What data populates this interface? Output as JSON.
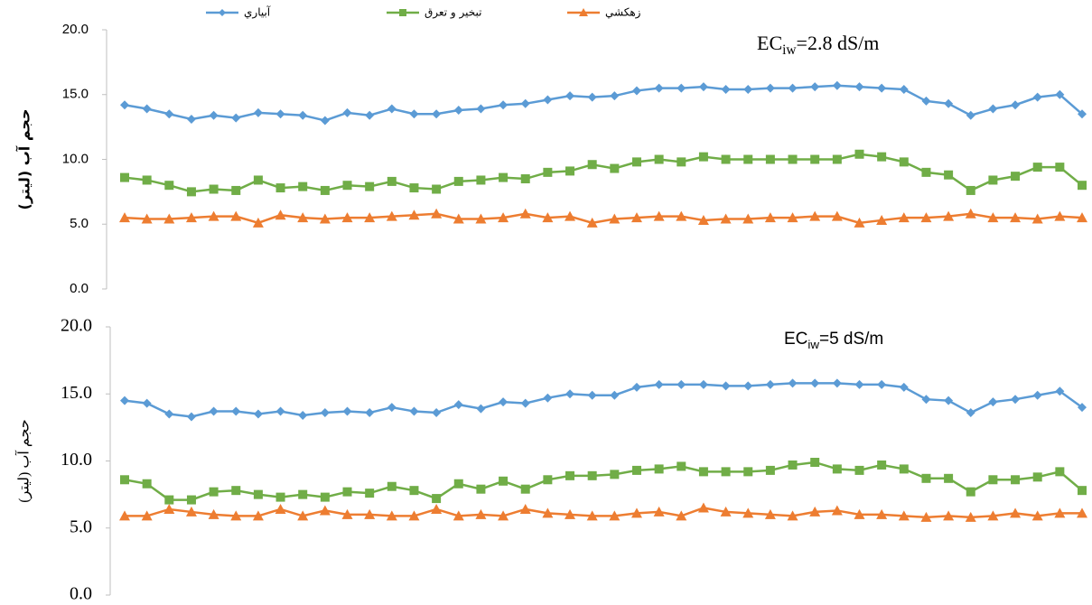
{
  "chart_data": [
    {
      "type": "line",
      "y_label": "حجم آب (ليتر)",
      "annotation": {
        "text": "EC",
        "sub": "iw",
        "rest": "=2.8 dS/m"
      },
      "categories": [
        null,
        null,
        null,
        null,
        null,
        null,
        null,
        null,
        null,
        null,
        null,
        null,
        null,
        null,
        null,
        null,
        null,
        null,
        null,
        null,
        null,
        null,
        null,
        null,
        null,
        null,
        null,
        null,
        null,
        null,
        null,
        null,
        null,
        null,
        null,
        null,
        null,
        null,
        null,
        null,
        null,
        null,
        null,
        null
      ],
      "ylim": [
        0,
        20
      ],
      "yticks": [
        {
          "value": 0,
          "label": "0.0"
        },
        {
          "value": 5,
          "label": "5.0"
        },
        {
          "value": 10,
          "label": "10.0"
        },
        {
          "value": 15,
          "label": "15.0"
        },
        {
          "value": 20,
          "label": "20.0"
        }
      ],
      "grid": false,
      "legend": "top",
      "series": [
        {
          "name": "آبياري",
          "color": "#5b9bd5",
          "marker": "diamond",
          "values": [
            14.2,
            13.9,
            13.5,
            13.1,
            13.4,
            13.2,
            13.6,
            13.5,
            13.4,
            13.0,
            13.6,
            13.4,
            13.9,
            13.5,
            13.5,
            13.8,
            13.9,
            14.2,
            14.3,
            14.6,
            14.9,
            14.8,
            14.9,
            15.3,
            15.5,
            15.5,
            15.6,
            15.4,
            15.4,
            15.5,
            15.5,
            15.6,
            15.7,
            15.6,
            15.5,
            15.4,
            14.5,
            14.3,
            13.4,
            13.9,
            14.2,
            14.8,
            15.0,
            13.5
          ]
        },
        {
          "name": "تبخير و تعرق",
          "color": "#70ad47",
          "marker": "square",
          "values": [
            8.6,
            8.4,
            8.0,
            7.5,
            7.7,
            7.6,
            8.4,
            7.8,
            7.9,
            7.6,
            8.0,
            7.9,
            8.3,
            7.8,
            7.7,
            8.3,
            8.4,
            8.6,
            8.5,
            9.0,
            9.1,
            9.6,
            9.3,
            9.8,
            10.0,
            9.8,
            10.2,
            10.0,
            10.0,
            10.0,
            10.0,
            10.0,
            10.0,
            10.4,
            10.2,
            9.8,
            9.0,
            8.8,
            7.6,
            8.4,
            8.7,
            9.4,
            9.4,
            8.0
          ]
        },
        {
          "name": "زهكشي",
          "color": "#ed7d31",
          "marker": "triangle",
          "values": [
            5.5,
            5.4,
            5.4,
            5.5,
            5.6,
            5.6,
            5.1,
            5.7,
            5.5,
            5.4,
            5.5,
            5.5,
            5.6,
            5.7,
            5.8,
            5.4,
            5.4,
            5.5,
            5.8,
            5.5,
            5.6,
            5.1,
            5.4,
            5.5,
            5.6,
            5.6,
            5.3,
            5.4,
            5.4,
            5.5,
            5.5,
            5.6,
            5.6,
            5.1,
            5.3,
            5.5,
            5.5,
            5.6,
            5.8,
            5.5,
            5.5,
            5.4,
            5.6,
            5.5
          ]
        }
      ]
    },
    {
      "type": "line",
      "y_label": "حجم آب (ليتر)",
      "annotation": {
        "text": "EC",
        "sub": "iw",
        "rest": "=5 dS/m"
      },
      "categories": [
        null,
        null,
        null,
        null,
        null,
        null,
        null,
        null,
        null,
        null,
        null,
        null,
        null,
        null,
        null,
        null,
        null,
        null,
        null,
        null,
        null,
        null,
        null,
        null,
        null,
        null,
        null,
        null,
        null,
        null,
        null,
        null,
        null,
        null,
        null,
        null,
        null,
        null,
        null,
        null,
        null,
        null,
        null,
        null
      ],
      "ylim": [
        0,
        20
      ],
      "yticks": [
        {
          "value": 0,
          "label": "0.0"
        },
        {
          "value": 5,
          "label": "5.0"
        },
        {
          "value": 10,
          "label": "10.0"
        },
        {
          "value": 15,
          "label": "15.0"
        },
        {
          "value": 20,
          "label": "20.0"
        }
      ],
      "grid": false,
      "series": [
        {
          "color": "#5b9bd5",
          "marker": "diamond",
          "values": [
            14.5,
            14.3,
            13.5,
            13.3,
            13.7,
            13.7,
            13.5,
            13.7,
            13.4,
            13.6,
            13.7,
            13.6,
            14.0,
            13.7,
            13.6,
            14.2,
            13.9,
            14.4,
            14.3,
            14.7,
            15.0,
            14.9,
            14.9,
            15.5,
            15.7,
            15.7,
            15.7,
            15.6,
            15.6,
            15.7,
            15.8,
            15.8,
            15.8,
            15.7,
            15.7,
            15.5,
            14.6,
            14.5,
            13.6,
            14.4,
            14.6,
            14.9,
            15.2,
            14.0
          ]
        },
        {
          "color": "#70ad47",
          "marker": "square",
          "values": [
            8.6,
            8.3,
            7.1,
            7.1,
            7.7,
            7.8,
            7.5,
            7.3,
            7.5,
            7.3,
            7.7,
            7.6,
            8.1,
            7.8,
            7.2,
            8.3,
            7.9,
            8.5,
            7.9,
            8.6,
            8.9,
            8.9,
            9.0,
            9.3,
            9.4,
            9.6,
            9.2,
            9.2,
            9.2,
            9.3,
            9.7,
            9.9,
            9.4,
            9.3,
            9.7,
            9.4,
            8.7,
            8.7,
            7.7,
            8.6,
            8.6,
            8.8,
            9.2,
            7.8
          ]
        },
        {
          "color": "#ed7d31",
          "marker": "triangle",
          "values": [
            5.9,
            5.9,
            6.4,
            6.2,
            6.0,
            5.9,
            5.9,
            6.4,
            5.9,
            6.3,
            6.0,
            6.0,
            5.9,
            5.9,
            6.4,
            5.9,
            6.0,
            5.9,
            6.4,
            6.1,
            6.0,
            5.9,
            5.9,
            6.1,
            6.2,
            5.9,
            6.5,
            6.2,
            6.1,
            6.0,
            5.9,
            6.2,
            6.3,
            6.0,
            6.0,
            5.9,
            5.8,
            5.9,
            5.8,
            5.9,
            6.1,
            5.9,
            6.1,
            6.1
          ]
        }
      ]
    }
  ]
}
